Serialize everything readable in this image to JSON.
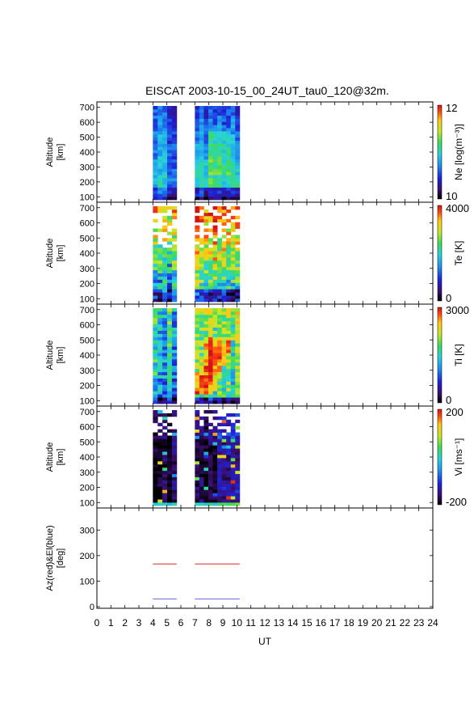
{
  "title": "EISCAT 2003-10-15_00_24UT_tau0_120@32m.",
  "xlabel": "UT",
  "x_ticks": [
    "0",
    "1",
    "2",
    "3",
    "4",
    "5",
    "6",
    "7",
    "8",
    "9",
    "10",
    "11",
    "12",
    "13",
    "14",
    "15",
    "16",
    "17",
    "18",
    "19",
    "20",
    "21",
    "22",
    "23",
    "24"
  ],
  "panels": [
    {
      "ylabel_lines": [
        "Altitude",
        "[km]"
      ],
      "y_ticks": [
        "100",
        "200",
        "300",
        "400",
        "500",
        "600",
        "700"
      ],
      "cbar_label": "Ne [log(m⁻³)]",
      "cbar_max": "12",
      "cbar_min": "10"
    },
    {
      "ylabel_lines": [
        "Altitude",
        "[km]"
      ],
      "y_ticks": [
        "100",
        "200",
        "300",
        "400",
        "500",
        "600",
        "700"
      ],
      "cbar_label": "Te [K]",
      "cbar_max": "4000",
      "cbar_min": "0"
    },
    {
      "ylabel_lines": [
        "Altitude",
        "[km]"
      ],
      "y_ticks": [
        "100",
        "200",
        "300",
        "400",
        "500",
        "600",
        "700"
      ],
      "cbar_label": "Ti [K]",
      "cbar_max": "3000",
      "cbar_min": "0"
    },
    {
      "ylabel_lines": [
        "Altitude",
        "[km]"
      ],
      "y_ticks": [
        "100",
        "200",
        "300",
        "400",
        "500",
        "600",
        "700"
      ],
      "cbar_label": "Vi [ms⁻¹]",
      "cbar_max": "200",
      "cbar_min": "-200"
    },
    {
      "ylabel_lines": [
        "Az(red)&El(blue)",
        "[deg]"
      ],
      "y_ticks": [
        "0",
        "100",
        "200",
        "300"
      ]
    }
  ],
  "chart_data": {
    "type": "heatmap",
    "x_range": [
      0,
      24
    ],
    "altitude_range_km": [
      80,
      720
    ],
    "observation_intervals_ut": [
      [
        4.0,
        5.7
      ],
      [
        7.0,
        10.2
      ]
    ],
    "colormap": [
      "#000000",
      "#3b0f70",
      "#1e22d8",
      "#1e8cf0",
      "#28d2dc",
      "#3cdc5a",
      "#c8e628",
      "#ffc814",
      "#ff4614",
      "#d21414"
    ],
    "parameters": [
      {
        "name": "Ne",
        "unit": "log(m-3)",
        "range": [
          10,
          12
        ]
      },
      {
        "name": "Te",
        "unit": "K",
        "range": [
          0,
          4000
        ]
      },
      {
        "name": "Ti",
        "unit": "K",
        "range": [
          0,
          3000
        ]
      },
      {
        "name": "Vi",
        "unit": "ms-1",
        "range": [
          -200,
          200
        ]
      }
    ],
    "pointing": {
      "ylim": [
        0,
        380
      ],
      "series": [
        {
          "name": "Az",
          "color": "#e0504a",
          "segments": [
            {
              "x": [
                4.0,
                5.7
              ],
              "y": 167
            },
            {
              "x": [
                7.0,
                10.2
              ],
              "y": 167
            }
          ]
        },
        {
          "name": "El",
          "color": "#8080e0",
          "segments": [
            {
              "x": [
                4.0,
                5.7
              ],
              "y": 30
            },
            {
              "x": [
                7.0,
                10.2
              ],
              "y": 30
            }
          ]
        }
      ]
    }
  }
}
